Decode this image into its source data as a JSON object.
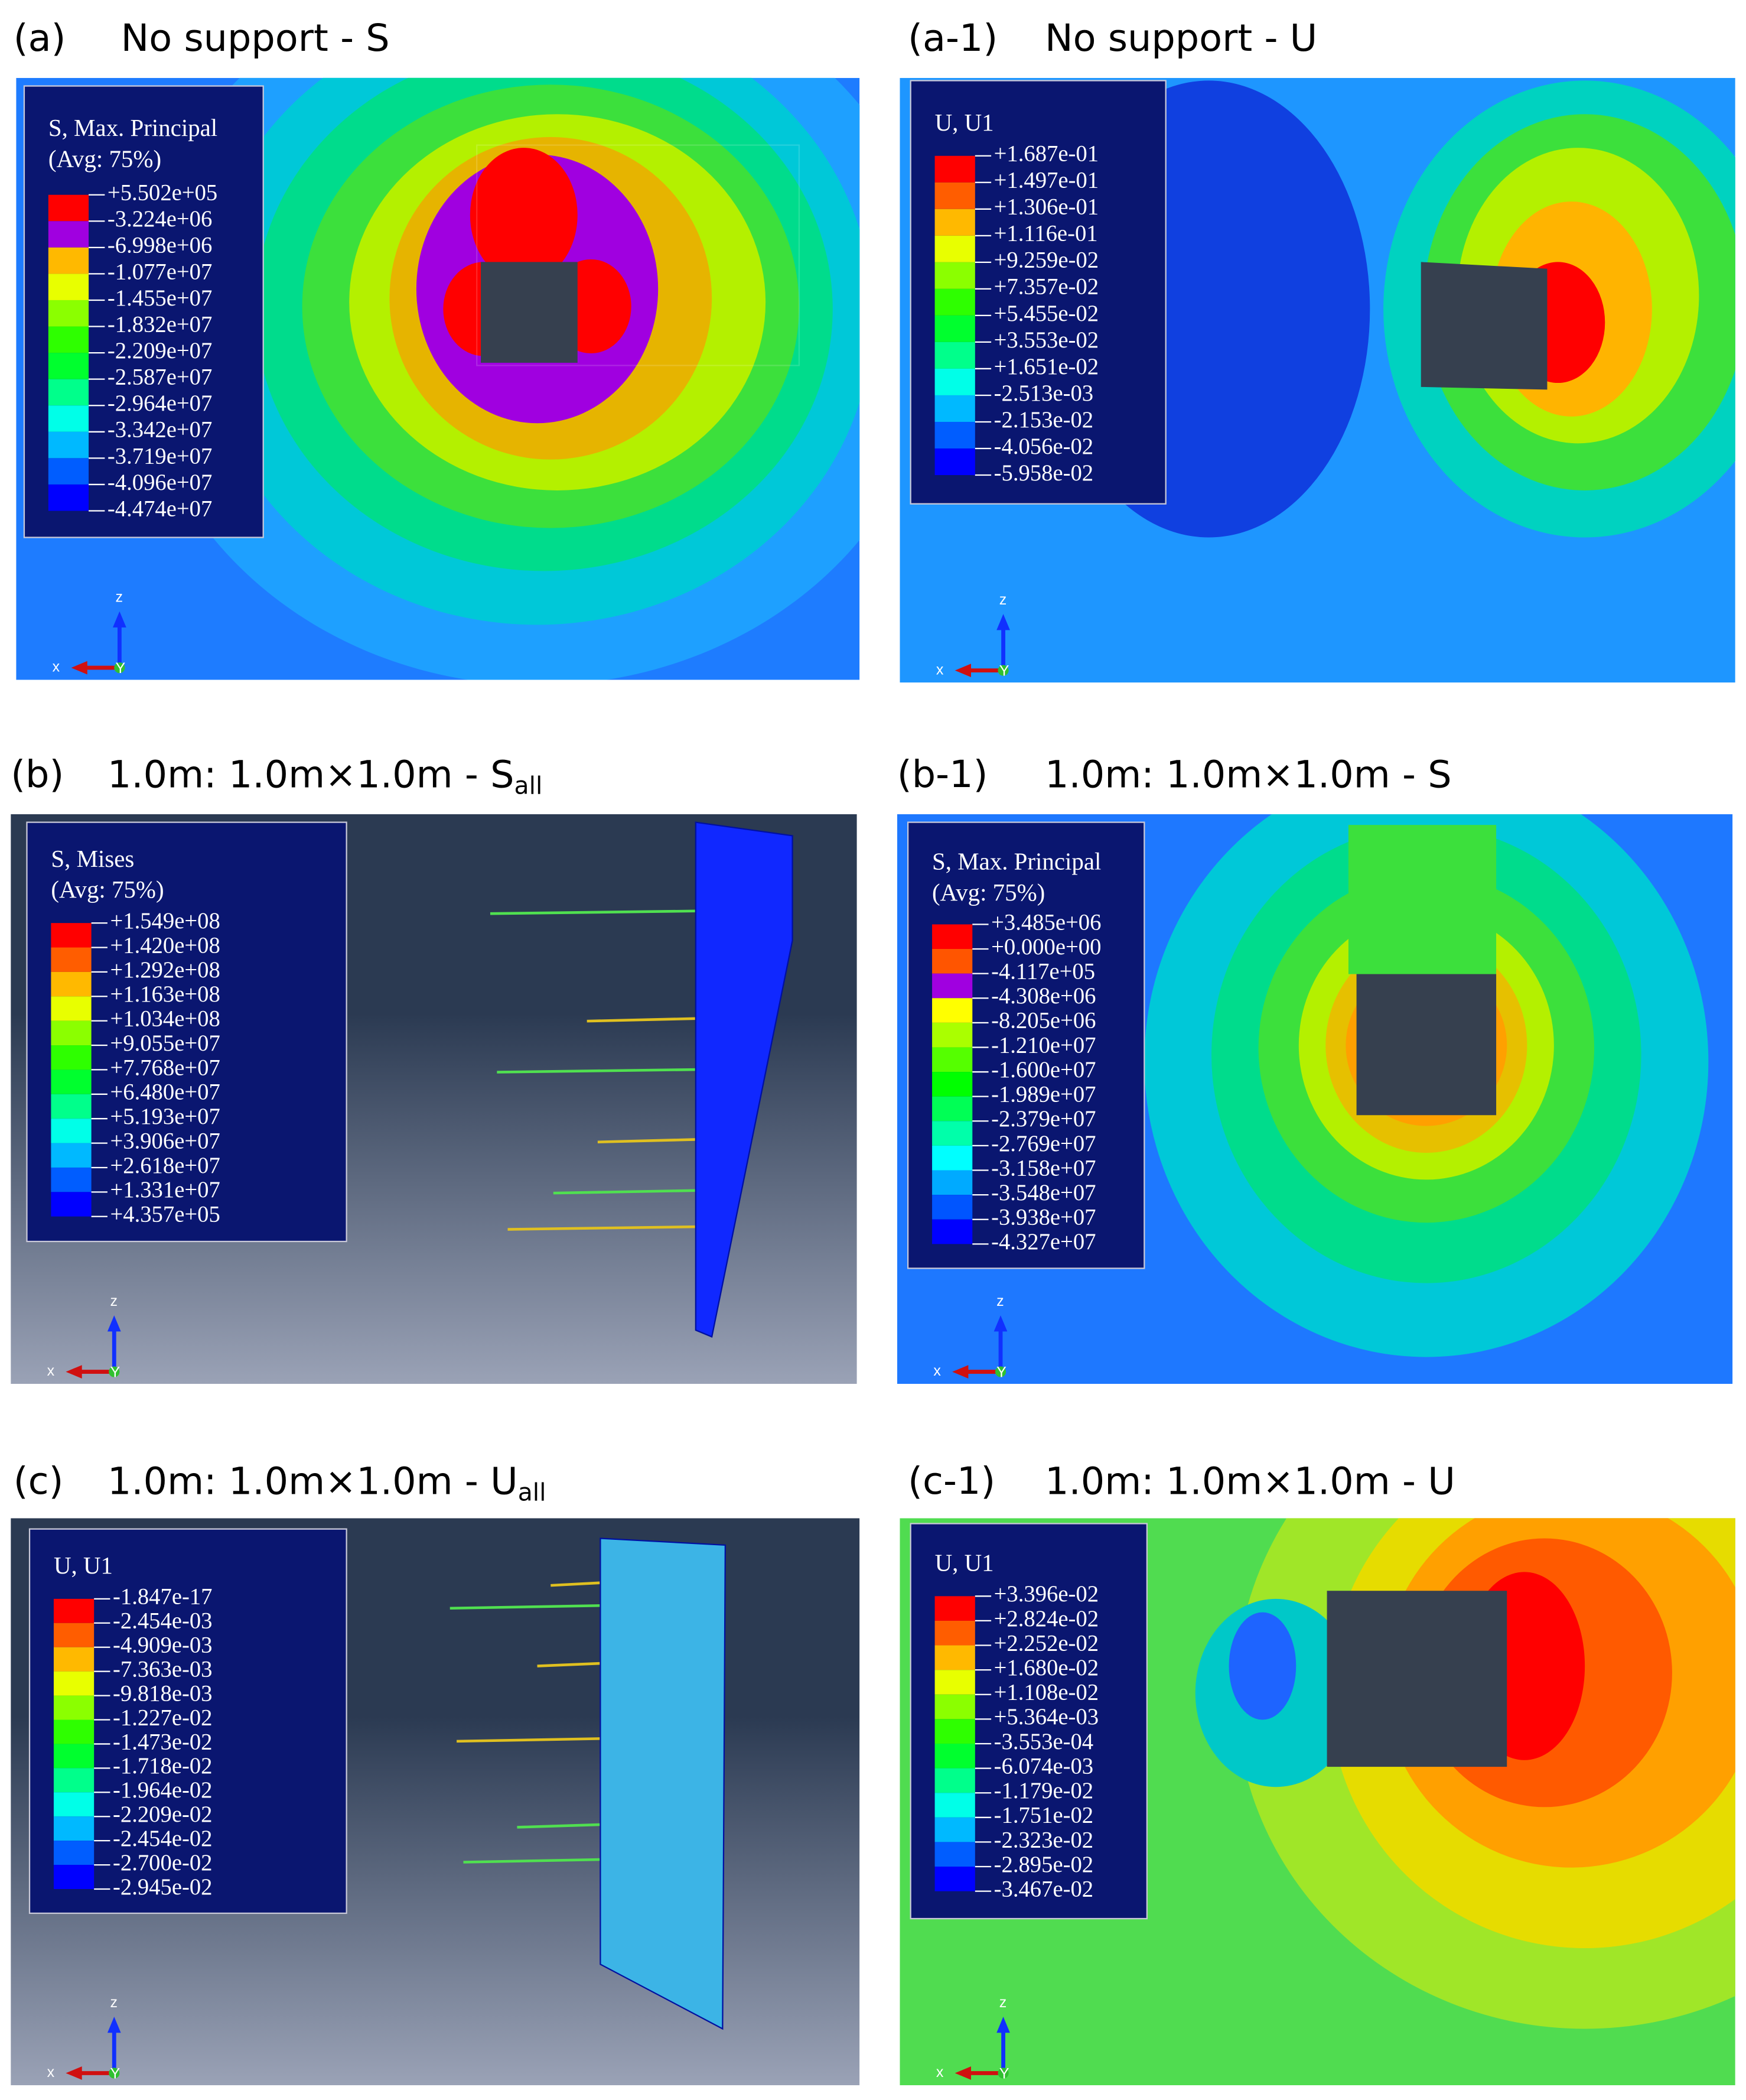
{
  "panels": [
    {
      "label": "(a)",
      "title": "No support - S",
      "legend": {
        "title": [
          "S, Max. Principal",
          "(Avg: 75%)"
        ],
        "values": [
          "+5.502e+05",
          "-3.224e+06",
          "-6.998e+06",
          "-1.077e+07",
          "-1.455e+07",
          "-1.832e+07",
          "-2.209e+07",
          "-2.587e+07",
          "-2.964e+07",
          "-3.342e+07",
          "-3.719e+07",
          "-4.096e+07",
          "-4.474e+07"
        ]
      },
      "axes": {
        "x": "x",
        "y": "Y",
        "z": "z"
      }
    },
    {
      "label": "(a-1)",
      "title": "No support - U",
      "legend": {
        "title": [
          "U, U1"
        ],
        "values": [
          "+1.687e-01",
          "+1.497e-01",
          "+1.306e-01",
          "+1.116e-01",
          "+9.259e-02",
          "+7.357e-02",
          "+5.455e-02",
          "+3.553e-02",
          "+1.651e-02",
          "-2.513e-03",
          "-2.153e-02",
          "-4.056e-02",
          "-5.958e-02"
        ]
      },
      "axes": {
        "x": "x",
        "y": "Y",
        "z": "z"
      }
    },
    {
      "label": "(b)",
      "title": "1.0m: 1.0m×1.0m - S",
      "subscript": "all",
      "legend": {
        "title": [
          "S, Mises",
          "(Avg: 75%)"
        ],
        "values": [
          "+1.549e+08",
          "+1.420e+08",
          "+1.292e+08",
          "+1.163e+08",
          "+1.034e+08",
          "+9.055e+07",
          "+7.768e+07",
          "+6.480e+07",
          "+5.193e+07",
          "+3.906e+07",
          "+2.618e+07",
          "+1.331e+07",
          "+4.357e+05"
        ]
      },
      "axes": {
        "x": "x",
        "y": "Y",
        "z": "z"
      }
    },
    {
      "label": "(b-1)",
      "title": "1.0m: 1.0m×1.0m -  S",
      "legend": {
        "title": [
          "S, Max. Principal",
          "(Avg: 75%)"
        ],
        "values": [
          "+3.485e+06",
          "+0.000e+00",
          "-4.117e+05",
          "-4.308e+06",
          "-8.205e+06",
          "-1.210e+07",
          "-1.600e+07",
          "-1.989e+07",
          "-2.379e+07",
          "-2.769e+07",
          "-3.158e+07",
          "-3.548e+07",
          "-3.938e+07",
          "-4.327e+07"
        ]
      },
      "axes": {
        "x": "x",
        "y": "Y",
        "z": "z"
      }
    },
    {
      "label": "(c)",
      "title": "1.0m: 1.0m×1.0m - U",
      "subscript": "all",
      "legend": {
        "title": [
          "U, U1"
        ],
        "values": [
          "-1.847e-17",
          "-2.454e-03",
          "-4.909e-03",
          "-7.363e-03",
          "-9.818e-03",
          "-1.227e-02",
          "-1.473e-02",
          "-1.718e-02",
          "-1.964e-02",
          "-2.209e-02",
          "-2.454e-02",
          "-2.700e-02",
          "-2.945e-02"
        ]
      },
      "axes": {
        "x": "x",
        "y": "Y",
        "z": "z"
      }
    },
    {
      "label": "(c-1)",
      "title": "1.0m: 1.0m×1.0m - U",
      "legend": {
        "title": [
          "U, U1"
        ],
        "values": [
          "+3.396e-02",
          "+2.824e-02",
          "+2.252e-02",
          "+1.680e-02",
          "+1.108e-02",
          "+5.364e-03",
          "-3.553e-04",
          "-6.074e-03",
          "-1.179e-02",
          "-1.751e-02",
          "-2.323e-02",
          "-2.895e-02",
          "-3.467e-02"
        ]
      },
      "axes": {
        "x": "x",
        "y": "Y",
        "z": "z"
      }
    }
  ]
}
